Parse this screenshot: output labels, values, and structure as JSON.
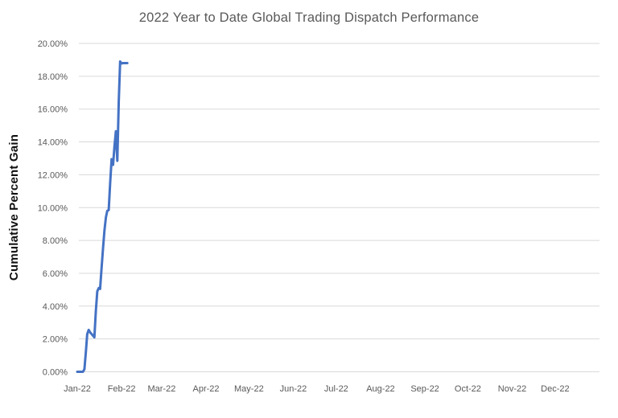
{
  "colors": {
    "background": "#ffffff",
    "line": "#4472C4",
    "gridline": "#D9D9D9",
    "title_text": "#595959",
    "tick_text": "#595959",
    "axis_title_text": "#111111"
  },
  "chart_data": {
    "type": "line",
    "title": "2022 Year to Date Global Trading Dispatch Performance",
    "xlabel": "",
    "ylabel": "Cumulative Percent Gain",
    "grid": "horizontal",
    "legend": "none",
    "x_axis": {
      "unit": "days since 2022-01-01",
      "range": [
        0,
        365
      ],
      "tick_days": [
        0,
        31,
        59,
        90,
        120,
        151,
        181,
        212,
        243,
        273,
        304,
        334
      ],
      "tick_labels": [
        "Jan-22",
        "Feb-22",
        "Mar-22",
        "Apr-22",
        "May-22",
        "Jun-22",
        "Jul-22",
        "Aug-22",
        "Sep-22",
        "Oct-22",
        "Nov-22",
        "Dec-22"
      ]
    },
    "y_axis": {
      "range": [
        0,
        20
      ],
      "tick_step": 2,
      "tick_labels": [
        "0.00%",
        "2.00%",
        "4.00%",
        "6.00%",
        "8.00%",
        "10.00%",
        "12.00%",
        "14.00%",
        "16.00%",
        "18.00%",
        "20.00%"
      ]
    },
    "series": [
      {
        "name": "Cumulative Percent Gain",
        "color": "#4472C4",
        "points": [
          [
            0,
            0.0
          ],
          [
            1,
            0.0
          ],
          [
            2,
            0.0
          ],
          [
            3,
            0.0
          ],
          [
            4,
            0.0
          ],
          [
            5,
            0.15
          ],
          [
            6,
            1.2
          ],
          [
            7,
            2.3
          ],
          [
            8,
            2.55
          ],
          [
            9,
            2.4
          ],
          [
            10,
            2.3
          ],
          [
            11,
            2.2
          ],
          [
            12,
            2.1
          ],
          [
            13,
            3.7
          ],
          [
            14,
            4.9
          ],
          [
            15,
            5.1
          ],
          [
            16,
            5.05
          ],
          [
            17,
            6.3
          ],
          [
            18,
            7.5
          ],
          [
            19,
            8.6
          ],
          [
            20,
            9.4
          ],
          [
            21,
            9.8
          ],
          [
            22,
            9.85
          ],
          [
            23,
            11.5
          ],
          [
            24,
            12.95
          ],
          [
            25,
            12.6
          ],
          [
            26,
            13.7
          ],
          [
            27,
            14.65
          ],
          [
            28,
            12.85
          ],
          [
            29,
            16.5
          ],
          [
            30,
            18.9
          ],
          [
            31,
            18.78
          ],
          [
            32,
            18.8
          ],
          [
            33,
            18.8
          ],
          [
            34,
            18.8
          ],
          [
            35,
            18.8
          ]
        ]
      }
    ]
  }
}
